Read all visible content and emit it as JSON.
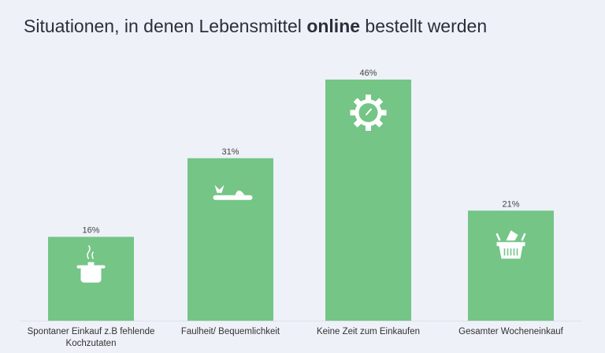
{
  "title": {
    "prefix": "Situationen, in denen Lebensmittel ",
    "bold": "online",
    "suffix": " bestellt werden"
  },
  "chart_data": {
    "type": "bar",
    "categories": [
      [
        "Spontaner Einkauf z.B fehlende",
        "Kochzutaten"
      ],
      [
        "Faulheit/ Bequemlichkeit"
      ],
      [
        "Keine Zeit zum Einkaufen"
      ],
      [
        "Gesamter Wocheneinkauf"
      ]
    ],
    "values": [
      16,
      31,
      46,
      21
    ],
    "data_labels": [
      "16%",
      "31%",
      "46%",
      "21%"
    ],
    "icons": [
      "cooking-pot-icon",
      "sandal-icon",
      "gear-clock-icon",
      "shopping-basket-icon"
    ],
    "unit": "%",
    "ylim": [
      0,
      46
    ],
    "grid": false,
    "bar_color": "#74c586",
    "background": "#eef1f8"
  }
}
